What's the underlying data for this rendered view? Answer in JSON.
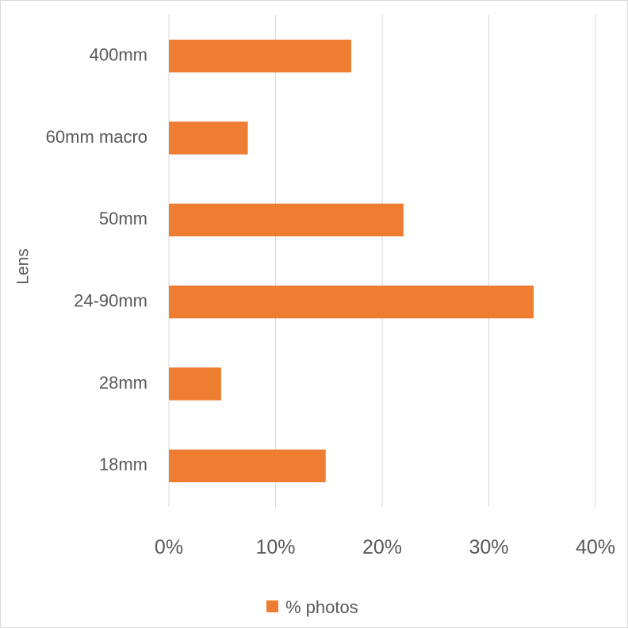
{
  "chart_data": {
    "type": "bar",
    "orientation": "horizontal",
    "categories": [
      "400mm",
      "60mm macro",
      "50mm",
      "24-90mm",
      "28mm",
      "18mm"
    ],
    "series": [
      {
        "name": "% photos",
        "values": [
          17.1,
          7.4,
          22.0,
          34.2,
          4.9,
          14.7
        ],
        "color": "#ED7D31"
      }
    ],
    "xlim": [
      0,
      40
    ],
    "x_ticks": [
      "0%",
      "10%",
      "20%",
      "30%",
      "40%"
    ],
    "ylabel": "Lens",
    "xlabel": "",
    "grid": true,
    "legend_position": "bottom"
  },
  "colors": {
    "bar": "#ED7D31",
    "grid": "#d9d9d9",
    "text": "#595959"
  }
}
